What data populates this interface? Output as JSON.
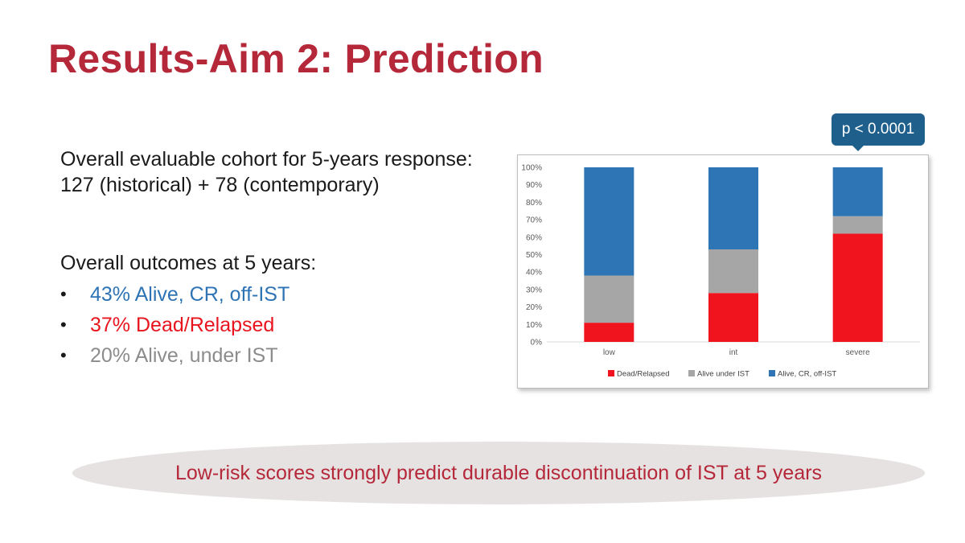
{
  "slide": {
    "title": "Results-Aim 2: Prediction",
    "cohort_line1": "Overall evaluable cohort for 5-years response:",
    "cohort_line2": "127 (historical) + 78 (contemporary)",
    "outcomes_heading": "Overall outcomes at 5 years:",
    "outcomes": [
      {
        "bullet": "•",
        "text": "43% Alive, CR, off-IST",
        "color": "#2e74b5"
      },
      {
        "bullet": "•",
        "text": "37% Dead/Relapsed",
        "color": "#e8141e"
      },
      {
        "bullet": "•",
        "text": "20% Alive, under IST",
        "color": "#8c8c8c"
      }
    ],
    "p_value": "p < 0.0001",
    "conclusion": "Low-risk scores strongly predict durable discontinuation of IST at 5 years"
  },
  "chart_data": {
    "type": "bar",
    "stacked": true,
    "categories": [
      "low",
      "int",
      "severe"
    ],
    "series": [
      {
        "name": "Dead/Relapsed",
        "color": "#f0141e",
        "values": [
          11,
          28,
          62
        ]
      },
      {
        "name": "Alive under IST",
        "color": "#a6a6a6",
        "values": [
          27,
          25,
          10
        ]
      },
      {
        "name": "Alive, CR, off-IST",
        "color": "#2e75b6",
        "values": [
          62,
          47,
          28
        ]
      }
    ],
    "y_ticks": [
      "0%",
      "10%",
      "20%",
      "30%",
      "40%",
      "50%",
      "60%",
      "70%",
      "80%",
      "90%",
      "100%"
    ],
    "ylim": [
      0,
      100
    ],
    "grid": false,
    "legend_position": "bottom"
  }
}
